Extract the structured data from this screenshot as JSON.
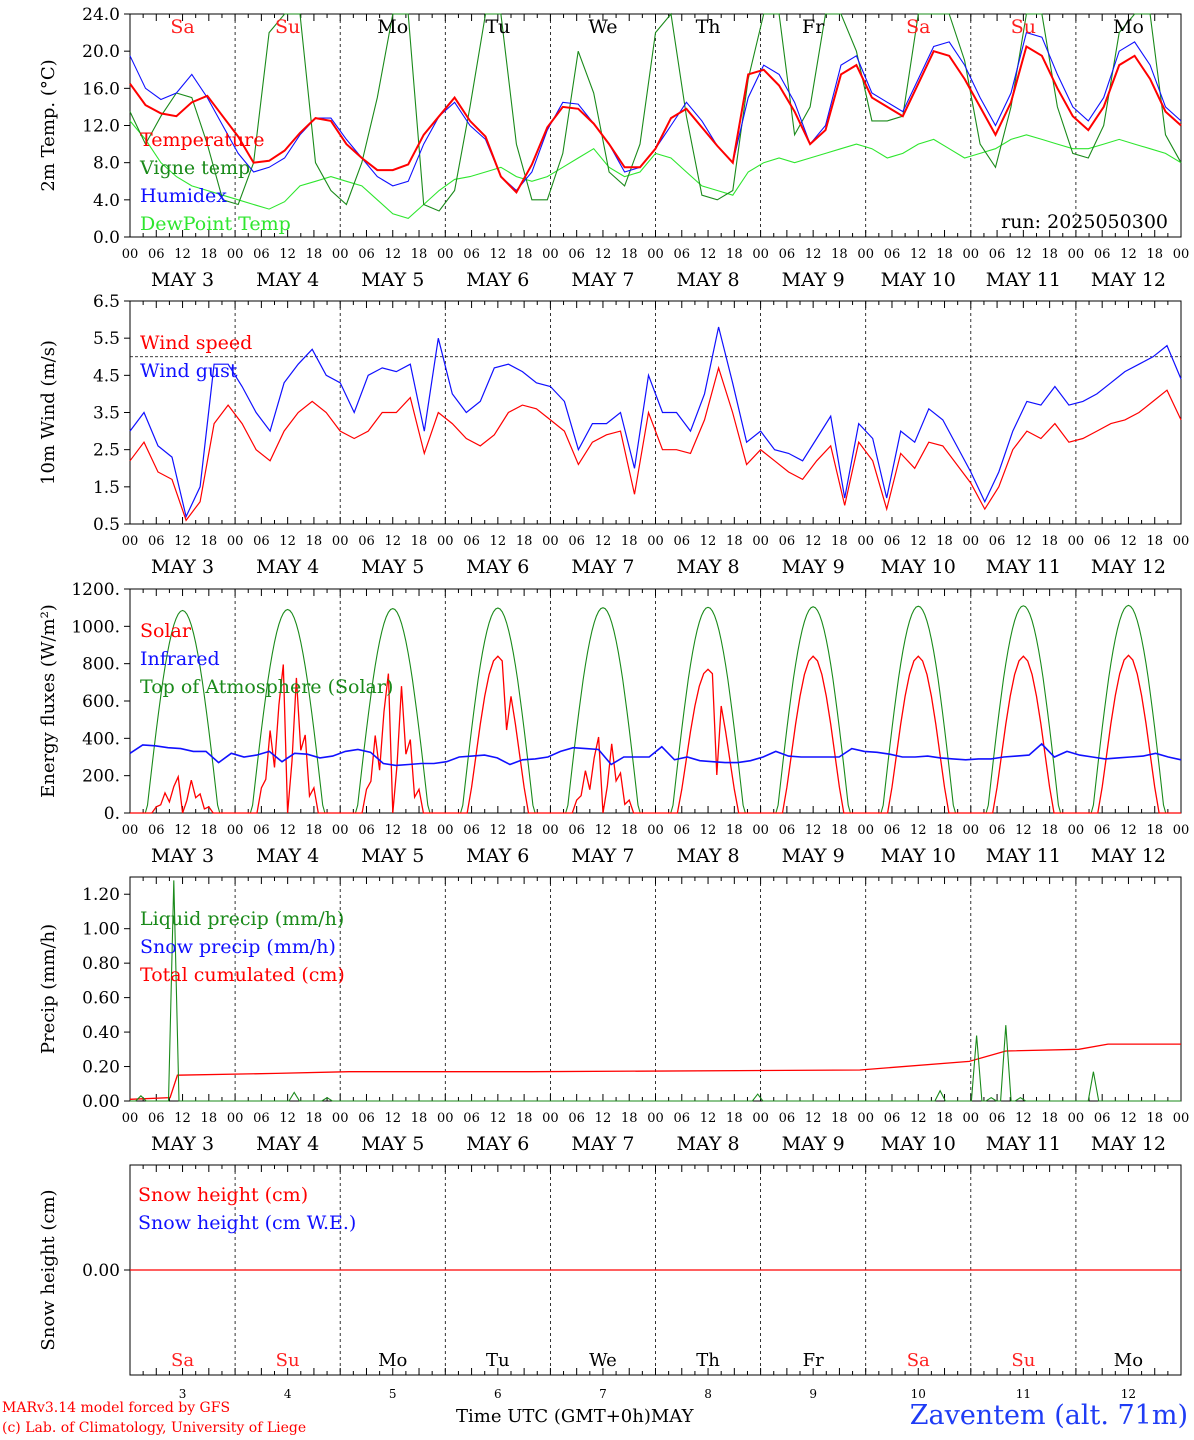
{
  "colors": {
    "red": "#ff0000",
    "green": "#1a8a1a",
    "blue": "#1010ff",
    "lightgreen": "#2ee62e",
    "black": "#000000",
    "weekend": "#ff2020"
  },
  "days": [
    "3",
    "4",
    "5",
    "6",
    "7",
    "8",
    "9",
    "10",
    "11",
    "12"
  ],
  "day_names": [
    "Sa",
    "Su",
    "Mo",
    "Tu",
    "We",
    "Th",
    "Fr",
    "Sa",
    "Su",
    "Mo"
  ],
  "weekend_flags": [
    true,
    true,
    false,
    false,
    false,
    false,
    false,
    true,
    true,
    false
  ],
  "hour_ticks": [
    "00",
    "06",
    "12",
    "18"
  ],
  "end_tick": "00",
  "month_label": "MAY",
  "run_label": "run: 2025050300",
  "footer": {
    "credit1": "MARv3.14 model forced by GFS",
    "credit2": "(c) Lab. of Climatology, University of Liege",
    "xtitle": "Time UTC (GMT+0h)MAY",
    "station": "Zaventem (alt. 71m)"
  },
  "chart_data": [
    {
      "type": "line",
      "ylabel": "2m Temp. (°C)",
      "ylim": [
        0,
        24
      ],
      "yticks": [
        "0.0",
        "4.0",
        "8.0",
        "12.0",
        "16.0",
        "20.0",
        "24.0"
      ],
      "x_unit": "hours since 2025-05-03 00 UTC (3-hourly)",
      "series": [
        {
          "name": "Temperature",
          "color": "red",
          "values": [
            16.5,
            14.2,
            13.3,
            13.0,
            14.5,
            15.2,
            13.0,
            10.8,
            8.0,
            8.2,
            9.3,
            11.2,
            12.8,
            12.5,
            10.0,
            8.5,
            7.2,
            7.2,
            7.8,
            11.0,
            13.0,
            15.0,
            12.5,
            10.8,
            6.5,
            4.8,
            7.8,
            11.8,
            14.0,
            13.8,
            12.2,
            10.0,
            7.5,
            7.5,
            9.5,
            12.8,
            13.8,
            11.8,
            9.8,
            8.0,
            17.5,
            18.0,
            16.3,
            13.5,
            10.0,
            11.5,
            17.5,
            18.5,
            15.0,
            14.0,
            13.0,
            16.5,
            20.0,
            19.5,
            17.0,
            14.0,
            11.0,
            14.5,
            20.5,
            19.5,
            16.0,
            13.0,
            11.5,
            14.0,
            18.5,
            19.5,
            17.0,
            13.5,
            12.0
          ]
        },
        {
          "name": "Vigne temp",
          "color": "green",
          "values": [
            13.5,
            10.0,
            13.0,
            15.5,
            15.0,
            10.0,
            4.0,
            3.5,
            8.0,
            22.0,
            24.0,
            24.0,
            8.0,
            5.0,
            3.5,
            8.0,
            15.0,
            24.0,
            24.0,
            3.5,
            2.8,
            5.0,
            14.0,
            24.0,
            24.0,
            10.0,
            4.0,
            4.0,
            9.0,
            20.0,
            15.5,
            7.0,
            5.5,
            10.0,
            22.0,
            24.0,
            13.0,
            4.5,
            4.0,
            5.0,
            17.0,
            24.0,
            24.0,
            11.0,
            14.0,
            24.0,
            24.0,
            20.0,
            12.5,
            12.5,
            13.0,
            24.0,
            24.0,
            24.0,
            19.0,
            10.0,
            7.5,
            14.0,
            24.0,
            24.0,
            14.0,
            9.0,
            8.5,
            12.0,
            22.0,
            24.0,
            24.0,
            11.0,
            8.0
          ]
        },
        {
          "name": "Humidex",
          "color": "blue",
          "values": [
            19.5,
            16.0,
            14.8,
            15.5,
            17.5,
            15.0,
            12.0,
            9.0,
            7.0,
            7.5,
            8.5,
            11.0,
            12.8,
            12.8,
            10.5,
            8.5,
            6.5,
            5.5,
            6.0,
            10.0,
            13.0,
            14.5,
            12.0,
            10.5,
            6.5,
            5.0,
            7.0,
            11.5,
            14.5,
            14.3,
            12.2,
            10.0,
            7.0,
            7.5,
            9.5,
            12.0,
            14.5,
            12.5,
            9.8,
            8.0,
            15.0,
            18.5,
            17.5,
            14.5,
            10.0,
            12.0,
            18.5,
            19.5,
            15.5,
            14.5,
            13.5,
            17.0,
            20.5,
            21.0,
            18.5,
            15.0,
            12.0,
            15.5,
            22.0,
            21.5,
            17.5,
            14.0,
            12.5,
            15.0,
            20.0,
            21.0,
            18.5,
            14.0,
            12.5
          ]
        },
        {
          "name": "DewPoint Temp",
          "color": "lightgreen",
          "values": [
            12.5,
            10.5,
            8.0,
            6.5,
            5.5,
            5.0,
            4.5,
            4.0,
            3.5,
            3.0,
            3.8,
            5.5,
            6.0,
            6.5,
            6.0,
            5.5,
            4.0,
            2.5,
            2.0,
            3.5,
            5.0,
            6.2,
            6.5,
            7.0,
            7.5,
            6.5,
            6.0,
            6.5,
            7.5,
            8.5,
            9.5,
            7.5,
            6.5,
            7.0,
            9.0,
            8.5,
            7.0,
            5.5,
            5.0,
            4.5,
            7.0,
            8.0,
            8.5,
            8.0,
            8.5,
            9.0,
            9.5,
            10.0,
            9.5,
            8.5,
            9.0,
            10.0,
            10.5,
            9.5,
            8.5,
            9.0,
            9.5,
            10.5,
            11.0,
            10.5,
            10.0,
            9.5,
            9.5,
            10.0,
            10.5,
            10.0,
            9.5,
            9.0,
            8.0
          ]
        }
      ]
    },
    {
      "type": "line",
      "ylabel": "10m Wind (m/s)",
      "ylim": [
        0.5,
        6.5
      ],
      "yticks": [
        "0.5",
        "1.5",
        "2.5",
        "3.5",
        "4.5",
        "5.5",
        "6.5"
      ],
      "x_unit": "hours since 2025-05-03 00 UTC (3-hourly)",
      "series": [
        {
          "name": "Wind speed",
          "color": "red",
          "values": [
            2.2,
            2.7,
            1.9,
            1.7,
            0.6,
            1.1,
            3.2,
            3.7,
            3.2,
            2.5,
            2.2,
            3.0,
            3.5,
            3.8,
            3.5,
            3.0,
            2.8,
            3.0,
            3.5,
            3.5,
            3.9,
            2.4,
            3.5,
            3.2,
            2.8,
            2.6,
            2.9,
            3.5,
            3.7,
            3.6,
            3.3,
            3.0,
            2.1,
            2.7,
            2.9,
            3.0,
            1.3,
            3.5,
            2.5,
            2.5,
            2.4,
            3.3,
            4.7,
            3.5,
            2.1,
            2.5,
            2.2,
            1.9,
            1.7,
            2.2,
            2.6,
            1.0,
            2.7,
            2.2,
            0.9,
            2.4,
            2.0,
            2.7,
            2.6,
            2.1,
            1.6,
            0.9,
            1.5,
            2.5,
            3.0,
            2.8,
            3.2,
            2.7,
            2.8,
            3.0,
            3.2,
            3.3,
            3.5,
            3.8,
            4.1,
            3.3
          ]
        },
        {
          "name": "Wind gust",
          "color": "blue",
          "values": [
            3.0,
            3.5,
            2.6,
            2.3,
            0.7,
            1.5,
            4.8,
            4.8,
            4.2,
            3.5,
            3.0,
            4.3,
            4.8,
            5.2,
            4.5,
            4.3,
            3.5,
            4.5,
            4.7,
            4.6,
            4.8,
            3.0,
            5.5,
            4.0,
            3.5,
            3.8,
            4.7,
            4.8,
            4.6,
            4.3,
            4.2,
            3.8,
            2.5,
            3.2,
            3.2,
            3.5,
            2.0,
            4.5,
            3.5,
            3.5,
            3.0,
            4.0,
            5.8,
            4.3,
            2.7,
            3.0,
            2.5,
            2.4,
            2.2,
            2.8,
            3.4,
            1.2,
            3.2,
            2.8,
            1.2,
            3.0,
            2.7,
            3.6,
            3.3,
            2.6,
            1.9,
            1.1,
            1.9,
            3.0,
            3.8,
            3.7,
            4.2,
            3.7,
            3.8,
            4.0,
            4.3,
            4.6,
            4.8,
            5.0,
            5.3,
            4.4
          ]
        }
      ]
    },
    {
      "type": "line",
      "ylabel": "Energy fluxes (W/m²)",
      "ylim": [
        0,
        1200
      ],
      "yticks": [
        "0.",
        "200.",
        "400.",
        "600.",
        "800.",
        "1000.",
        "1200."
      ],
      "daily_peaks": {
        "Top of Atmosphere (Solar)": [
          1085,
          1090,
          1095,
          1098,
          1100,
          1102,
          1105,
          1108,
          1110,
          1112
        ],
        "Solar": [
          200,
          820,
          770,
          840,
          420,
          770,
          840,
          840,
          840,
          845
        ]
      },
      "series": [
        {
          "name": "Solar",
          "color": "red"
        },
        {
          "name": "Infrared",
          "color": "blue",
          "values": [
            320,
            365,
            360,
            350,
            345,
            330,
            330,
            270,
            320,
            300,
            310,
            330,
            275,
            320,
            315,
            295,
            305,
            330,
            340,
            325,
            265,
            255,
            260,
            265,
            265,
            275,
            300,
            305,
            310,
            295,
            260,
            285,
            290,
            300,
            330,
            350,
            345,
            340,
            260,
            300,
            300,
            300,
            355,
            285,
            300,
            280,
            275,
            270,
            270,
            280,
            300,
            330,
            305,
            300,
            300,
            300,
            300,
            345,
            330,
            325,
            315,
            300,
            300,
            305,
            295,
            290,
            285,
            290,
            290,
            300,
            305,
            310,
            370,
            300,
            330,
            310,
            300,
            290,
            295,
            300,
            305,
            320,
            300,
            285
          ]
        },
        {
          "name": "Top of Atmosphere (Solar)",
          "color": "green"
        }
      ]
    },
    {
      "type": "line",
      "ylabel": "Precip (mm/h)",
      "ylim": [
        0,
        1.3
      ],
      "yticks": [
        "0.00",
        "0.20",
        "0.40",
        "0.60",
        "0.80",
        "1.00",
        "1.20"
      ],
      "series": [
        {
          "name": "Liquid precip (mm/h)",
          "color": "green",
          "spikes": [
            [
              3,
              0.03
            ],
            [
              12,
              1.28
            ],
            [
              45,
              0.05
            ],
            [
              54,
              0.02
            ],
            [
              172,
              0.04
            ],
            [
              222,
              0.06
            ],
            [
              232,
              0.38
            ],
            [
              236,
              0.02
            ],
            [
              240,
              0.44
            ],
            [
              244,
              0.02
            ],
            [
              264,
              0.17
            ]
          ]
        },
        {
          "name": "Snow precip (mm/h)",
          "color": "blue",
          "values": [
            0
          ]
        },
        {
          "name": "Total cumulated (cm)",
          "color": "red",
          "steps": [
            [
              0,
              0.01
            ],
            [
              11,
              0.02
            ],
            [
              13,
              0.15
            ],
            [
              40,
              0.16
            ],
            [
              60,
              0.17
            ],
            [
              110,
              0.17
            ],
            [
              200,
              0.18
            ],
            [
              230,
              0.23
            ],
            [
              240,
              0.29
            ],
            [
              260,
              0.3
            ],
            [
              268,
              0.33
            ],
            [
              288,
              0.33
            ]
          ]
        }
      ]
    },
    {
      "type": "line",
      "ylabel": "Snow height (cm)",
      "yticks": [
        "0.00"
      ],
      "series": [
        {
          "name": "Snow height (cm)",
          "color": "red",
          "values": [
            0.0
          ]
        },
        {
          "name": "Snow height (cm W.E.)",
          "color": "blue",
          "values": [
            0.0
          ]
        }
      ]
    }
  ]
}
